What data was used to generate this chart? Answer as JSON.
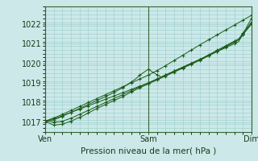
{
  "xlabel": "Pression niveau de la mer( hPa )",
  "bg_color": "#cce8e8",
  "plot_bg_color": "#cce8e8",
  "grid_color": "#99cccc",
  "line_color": "#1a5c1a",
  "marker_color": "#1a5c1a",
  "ylim": [
    1016.5,
    1022.6
  ],
  "xlim": [
    0,
    48
  ],
  "yticks": [
    1017,
    1018,
    1019,
    1020,
    1021,
    1022
  ],
  "xtick_positions": [
    0,
    24,
    48
  ],
  "xtick_labels": [
    "Ven",
    "Sam",
    "Dim"
  ],
  "figsize": [
    3.2,
    2.0
  ],
  "dpi": 100
}
